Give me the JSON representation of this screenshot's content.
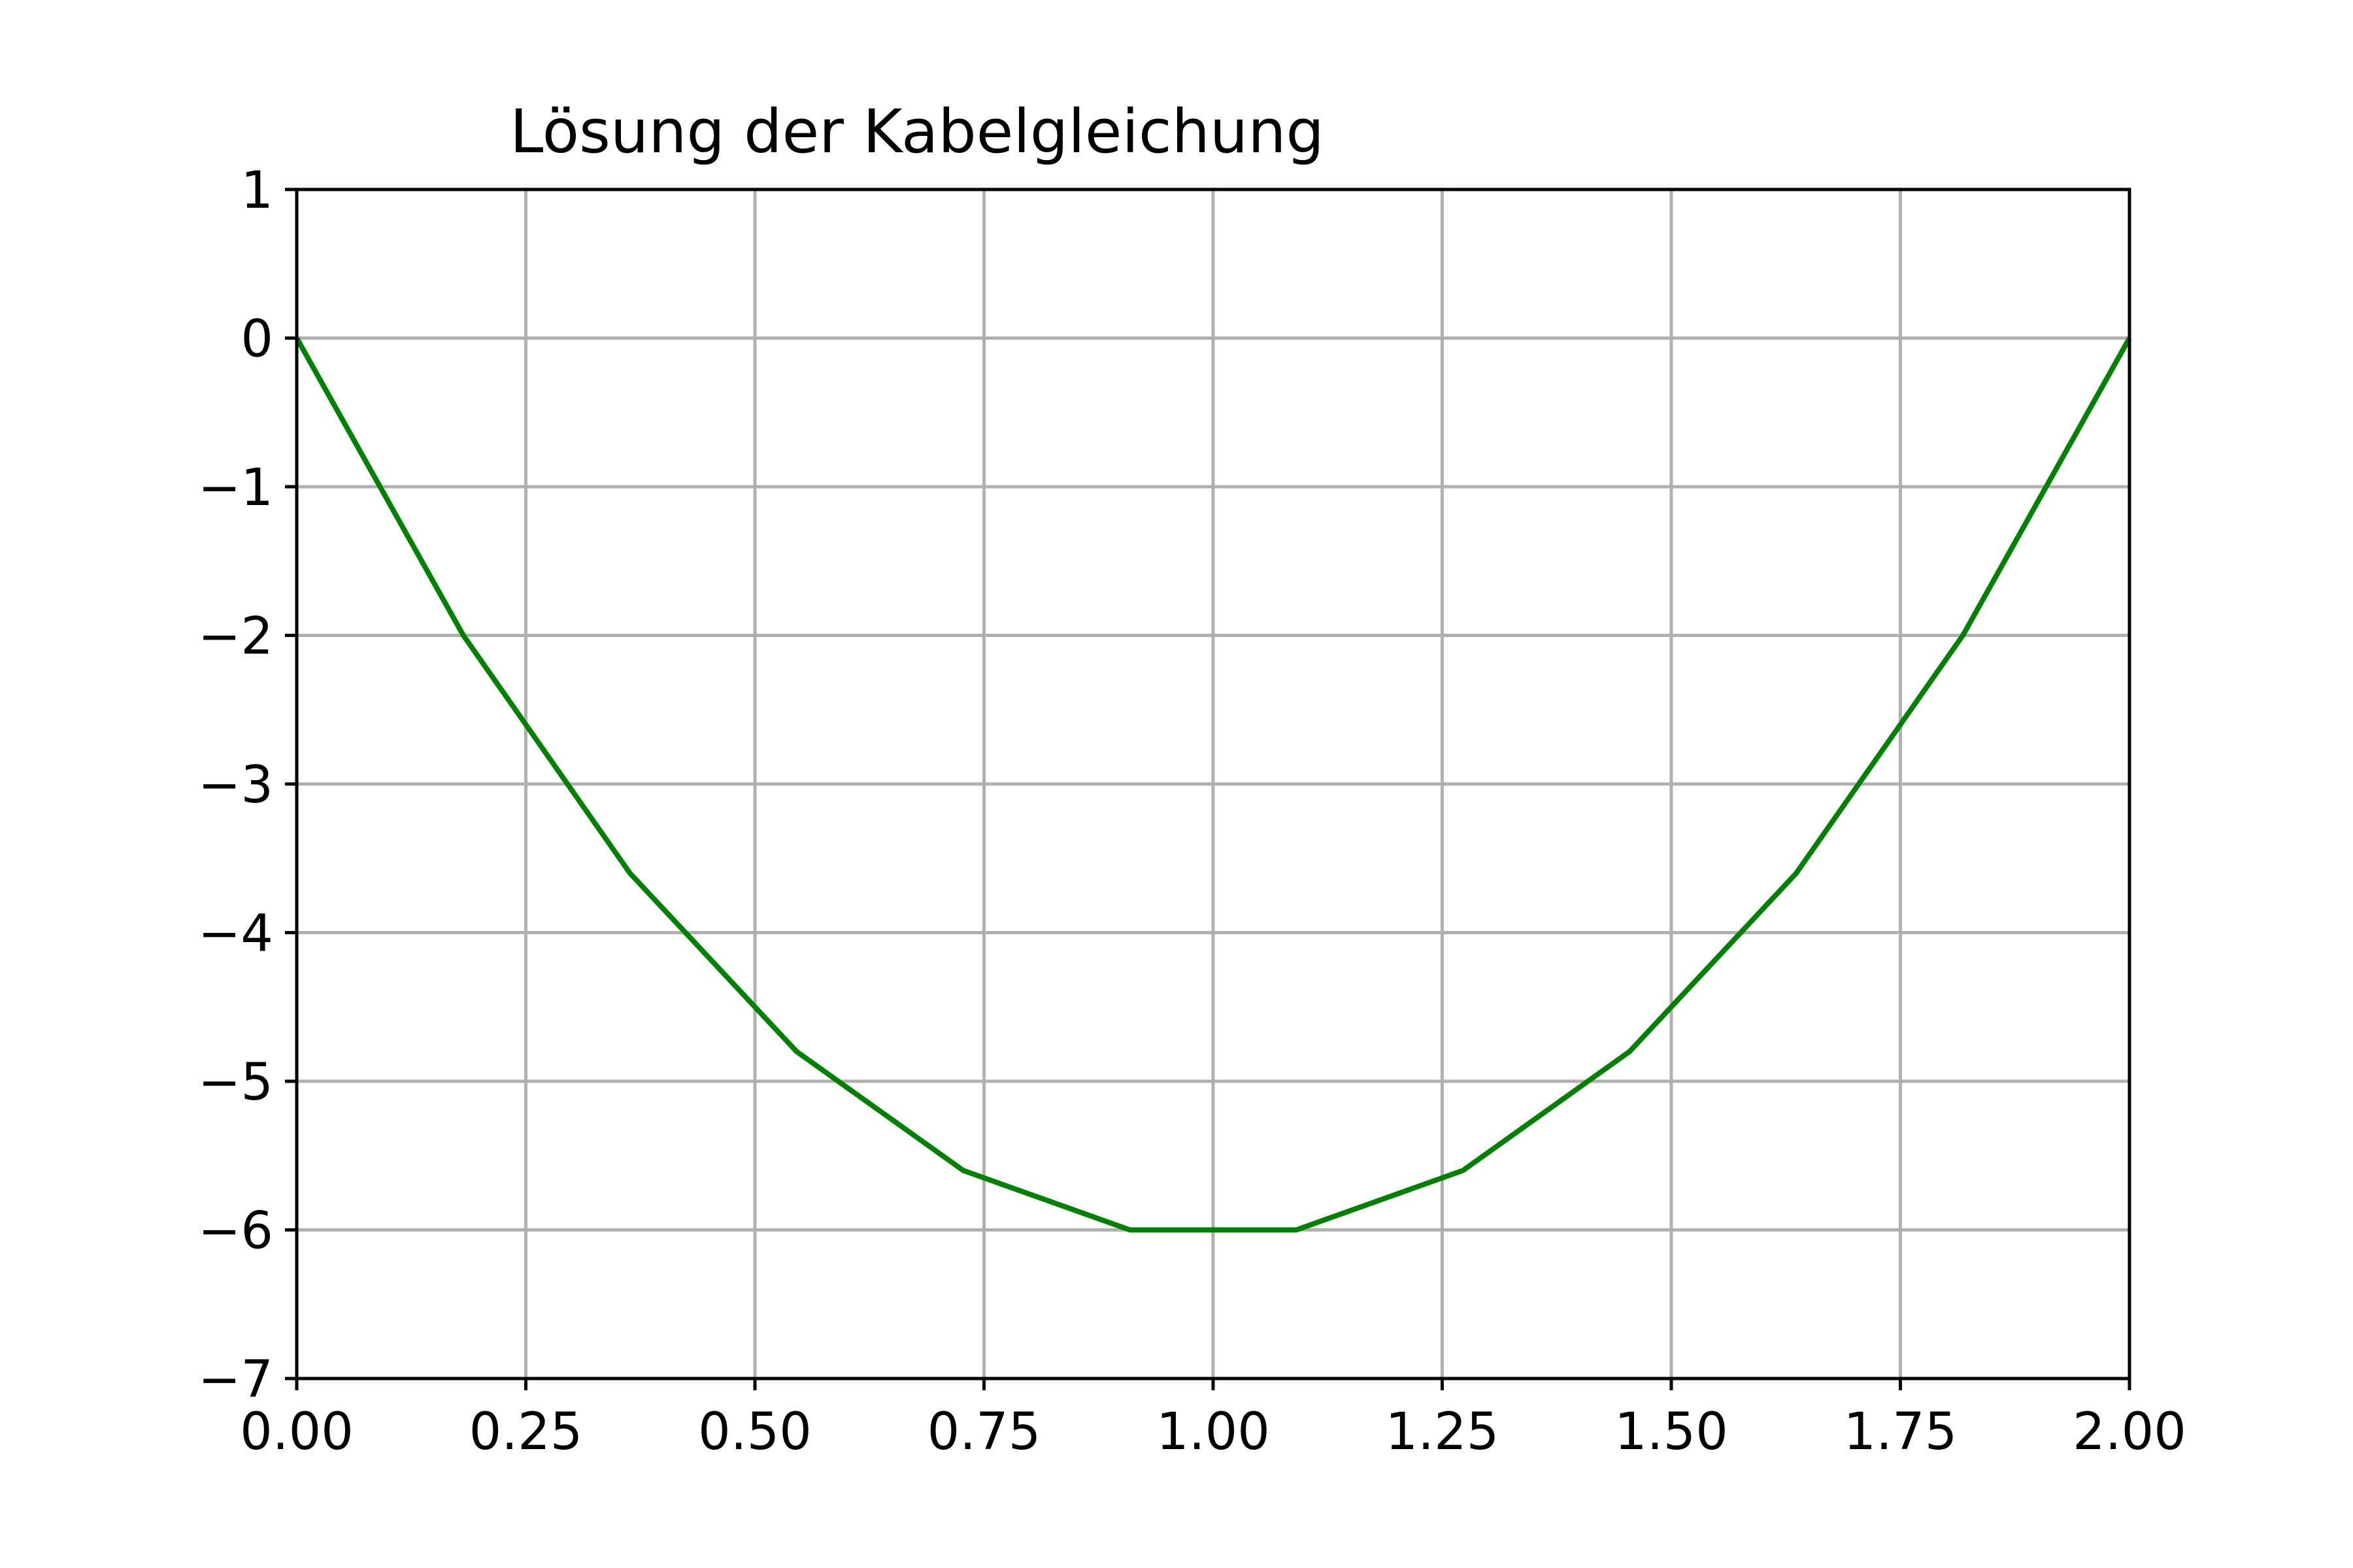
{
  "colors": {
    "series": "#008000",
    "grid": "#b0b0b0",
    "axis": "#000000"
  },
  "chart_data": {
    "type": "line",
    "title": "Lösung der Kabelgleichung",
    "xlabel": "",
    "ylabel": "",
    "xlim": [
      0,
      2
    ],
    "ylim": [
      -7,
      1
    ],
    "grid": true,
    "x_ticks": [
      {
        "value": 0.0,
        "label": "0.00"
      },
      {
        "value": 0.25,
        "label": "0.25"
      },
      {
        "value": 0.5,
        "label": "0.50"
      },
      {
        "value": 0.75,
        "label": "0.75"
      },
      {
        "value": 1.0,
        "label": "1.00"
      },
      {
        "value": 1.25,
        "label": "1.25"
      },
      {
        "value": 1.5,
        "label": "1.50"
      },
      {
        "value": 1.75,
        "label": "1.75"
      },
      {
        "value": 2.0,
        "label": "2.00"
      }
    ],
    "y_ticks": [
      {
        "value": 1,
        "label": "1"
      },
      {
        "value": 0,
        "label": "0"
      },
      {
        "value": -1,
        "label": "−1"
      },
      {
        "value": -2,
        "label": "−2"
      },
      {
        "value": -3,
        "label": "−3"
      },
      {
        "value": -4,
        "label": "−4"
      },
      {
        "value": -5,
        "label": "−5"
      },
      {
        "value": -6,
        "label": "−6"
      },
      {
        "value": -7,
        "label": "−7"
      }
    ],
    "series": [
      {
        "x": [
          0.0,
          0.1818,
          0.3636,
          0.5455,
          0.7273,
          0.9091,
          1.0909,
          1.2727,
          1.4545,
          1.6364,
          1.8182,
          2.0
        ],
        "y": [
          0.0,
          -2.0,
          -3.6,
          -4.8,
          -5.6,
          -6.0,
          -6.0,
          -5.6,
          -4.8,
          -3.6,
          -2.0,
          0.0
        ]
      }
    ]
  }
}
